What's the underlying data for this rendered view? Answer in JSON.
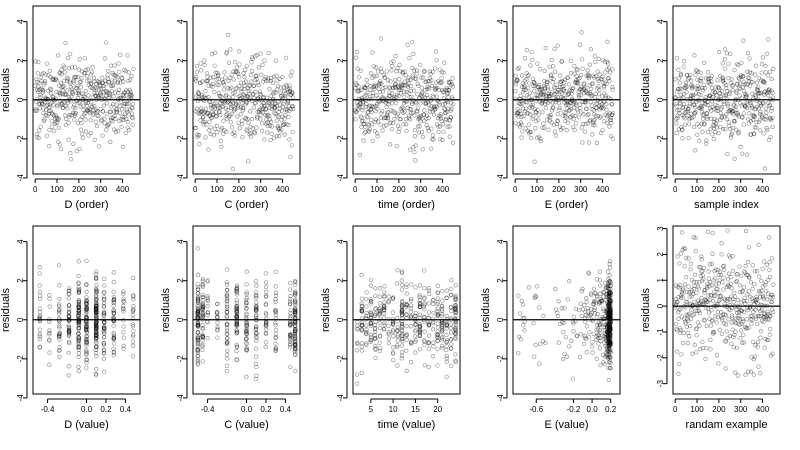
{
  "chart_data": [
    {
      "type": "scatter",
      "panel": "d-order",
      "xlabel": "D (order)",
      "ylabel": "residuals",
      "xlim": [
        -10,
        480
      ],
      "ylim": [
        -3.8,
        4.8
      ],
      "xticks": [
        0,
        100,
        200,
        300,
        400
      ],
      "yticks": [
        -4,
        -2,
        0,
        2,
        4
      ],
      "xtick_labels": [
        "0",
        "100",
        "200",
        "300",
        "400"
      ],
      "ytick_labels": [
        "-4",
        "-2",
        "0",
        "2",
        "4"
      ],
      "reference_line_y": 0,
      "n_points": 450,
      "x_pattern": "index"
    },
    {
      "type": "scatter",
      "panel": "c-order",
      "xlabel": "C (order)",
      "ylabel": "residuals",
      "xlim": [
        -10,
        480
      ],
      "ylim": [
        -3.8,
        4.8
      ],
      "xticks": [
        0,
        100,
        200,
        300,
        400
      ],
      "yticks": [
        -4,
        -2,
        0,
        2,
        4
      ],
      "xtick_labels": [
        "0",
        "100",
        "200",
        "300",
        "400"
      ],
      "ytick_labels": [
        "-4",
        "-2",
        "0",
        "2",
        "4"
      ],
      "reference_line_y": 0,
      "n_points": 450,
      "x_pattern": "index"
    },
    {
      "type": "scatter",
      "panel": "time-order",
      "xlabel": "time (order)",
      "ylabel": "residuals",
      "xlim": [
        -10,
        480
      ],
      "ylim": [
        -3.8,
        4.8
      ],
      "xticks": [
        0,
        100,
        200,
        300,
        400
      ],
      "yticks": [
        -4,
        -2,
        0,
        2,
        4
      ],
      "xtick_labels": [
        "0",
        "100",
        "200",
        "300",
        "400"
      ],
      "ytick_labels": [
        "-4",
        "-2",
        "0",
        "2",
        "4"
      ],
      "reference_line_y": 0,
      "n_points": 450,
      "x_pattern": "index"
    },
    {
      "type": "scatter",
      "panel": "e-order",
      "xlabel": "E (order)",
      "ylabel": "residuals",
      "xlim": [
        -10,
        480
      ],
      "ylim": [
        -3.8,
        4.8
      ],
      "xticks": [
        0,
        100,
        200,
        300,
        400
      ],
      "yticks": [
        -4,
        -2,
        0,
        2,
        4
      ],
      "xtick_labels": [
        "0",
        "100",
        "200",
        "300",
        "400"
      ],
      "ytick_labels": [
        "-4",
        "-2",
        "0",
        "2",
        "4"
      ],
      "reference_line_y": 0,
      "n_points": 450,
      "x_pattern": "index"
    },
    {
      "type": "scatter",
      "panel": "sample-index",
      "xlabel": "sample index",
      "ylabel": "residuals",
      "xlim": [
        -10,
        480
      ],
      "ylim": [
        -3.8,
        4.8
      ],
      "xticks": [
        0,
        100,
        200,
        300,
        400
      ],
      "yticks": [
        -4,
        -2,
        0,
        2,
        4
      ],
      "xtick_labels": [
        "0",
        "100",
        "200",
        "300",
        "400"
      ],
      "ytick_labels": [
        "-4",
        "-2",
        "0",
        "2",
        "4"
      ],
      "reference_line_y": 0,
      "n_points": 450,
      "x_pattern": "index"
    },
    {
      "type": "scatter",
      "panel": "d-value",
      "xlabel": "D (value)",
      "ylabel": "residuals",
      "xlim": [
        -0.55,
        0.55
      ],
      "ylim": [
        -3.8,
        4.8
      ],
      "xticks": [
        -0.4,
        0,
        0.2,
        0.4
      ],
      "yticks": [
        -4,
        -2,
        0,
        2,
        4
      ],
      "xtick_labels": [
        "-0.4",
        "0.0",
        "0.2",
        "0.4"
      ],
      "ytick_labels": [
        "-4",
        "-2",
        "0",
        "2",
        "4"
      ],
      "reference_line_y": 0,
      "n_points": 450,
      "x_pattern": "discrete",
      "x_levels": [
        -0.48,
        -0.38,
        -0.28,
        -0.18,
        -0.08,
        0,
        0.1,
        0.18,
        0.28,
        0.38,
        0.48
      ],
      "x_weights": [
        1,
        1,
        2,
        3,
        4,
        4,
        5,
        3,
        2,
        1,
        1
      ]
    },
    {
      "type": "scatter",
      "panel": "c-value",
      "xlabel": "C (value)",
      "ylabel": "residuals",
      "xlim": [
        -0.55,
        0.55
      ],
      "ylim": [
        -3.8,
        4.8
      ],
      "xticks": [
        -0.4,
        0,
        0.2,
        0.4
      ],
      "yticks": [
        -4,
        -2,
        0,
        2,
        4
      ],
      "xtick_labels": [
        "-0.4",
        "0.0",
        "0.2",
        "0.4"
      ],
      "ytick_labels": [
        "-4",
        "-2",
        "0",
        "2",
        "4"
      ],
      "reference_line_y": 0,
      "n_points": 450,
      "x_pattern": "discrete",
      "x_levels": [
        -0.5,
        -0.45,
        -0.4,
        -0.3,
        -0.2,
        -0.1,
        0,
        0.1,
        0.2,
        0.3,
        0.45,
        0.5
      ],
      "x_weights": [
        4,
        2,
        1,
        1,
        2,
        2,
        2,
        2,
        1,
        1,
        2,
        4
      ]
    },
    {
      "type": "scatter",
      "panel": "time-value",
      "xlabel": "time (value)",
      "ylabel": "residuals",
      "xlim": [
        1,
        25
      ],
      "ylim": [
        -3.8,
        4.8
      ],
      "xticks": [
        5,
        10,
        15,
        20
      ],
      "yticks": [
        -4,
        -2,
        0,
        2,
        4
      ],
      "xtick_labels": [
        "5",
        "10",
        "15",
        "20"
      ],
      "ytick_labels": [
        "-4",
        "-2",
        "0",
        "2",
        "4"
      ],
      "reference_line_y": 0,
      "n_points": 450,
      "x_pattern": "discrete",
      "x_levels": [
        2,
        3,
        4,
        5,
        6,
        7,
        8,
        9,
        10,
        11,
        12,
        13,
        14,
        15,
        16,
        17,
        18,
        19,
        20,
        21,
        22,
        23,
        24
      ],
      "x_weights": [
        1,
        1,
        1,
        1,
        1,
        1,
        1,
        1,
        1,
        1,
        2,
        1,
        1,
        1,
        1,
        1,
        1,
        1,
        1,
        1,
        1,
        1,
        2
      ]
    },
    {
      "type": "scatter",
      "panel": "e-value",
      "xlabel": "E (value)",
      "ylabel": "residuals",
      "xlim": [
        -0.85,
        0.3
      ],
      "ylim": [
        -3.8,
        4.8
      ],
      "xticks": [
        -0.6,
        -0.2,
        0,
        0.2
      ],
      "yticks": [
        -4,
        -2,
        0,
        2,
        4
      ],
      "xtick_labels": [
        "-0.6",
        "-0.2",
        "0.0",
        "0.2"
      ],
      "ytick_labels": [
        "-4",
        "-2",
        "0",
        "2",
        "4"
      ],
      "reference_line_y": 0,
      "n_points": 450,
      "x_pattern": "skewed"
    },
    {
      "type": "scatter",
      "panel": "random-example",
      "xlabel": "randam example",
      "ylabel": "residuals",
      "xlim": [
        -10,
        480
      ],
      "ylim": [
        -3.4,
        3.1
      ],
      "xticks": [
        0,
        100,
        200,
        300,
        400
      ],
      "yticks": [
        -3,
        -2,
        -1,
        0,
        1,
        2,
        3
      ],
      "xtick_labels": [
        "0",
        "100",
        "200",
        "300",
        "400"
      ],
      "ytick_labels": [
        "-3",
        "-2",
        "-1",
        "0",
        "1",
        "2",
        "3"
      ],
      "reference_line_y": 0,
      "n_points": 450,
      "x_pattern": "index"
    }
  ]
}
